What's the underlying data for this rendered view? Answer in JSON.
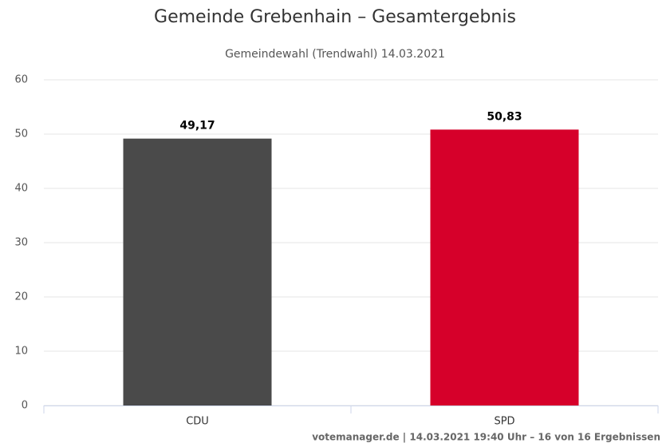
{
  "chart_data": {
    "type": "bar",
    "title": "Gemeinde Grebenhain – Gesamtergebnis",
    "subtitle": "Gemeindewahl (Trendwahl) 14.03.2021",
    "categories": [
      "CDU",
      "SPD"
    ],
    "values": [
      49.17,
      50.83
    ],
    "value_labels": [
      "49,17",
      "50,83"
    ],
    "colors": [
      "#4a4a4a",
      "#d6002a"
    ],
    "ylim": [
      0,
      60
    ],
    "yticks": [
      0,
      10,
      20,
      30,
      40,
      50,
      60
    ],
    "grid": true,
    "credits": "votemanager.de | 14.03.2021 19:40 Uhr – 16 von 16 Ergebnissen"
  }
}
